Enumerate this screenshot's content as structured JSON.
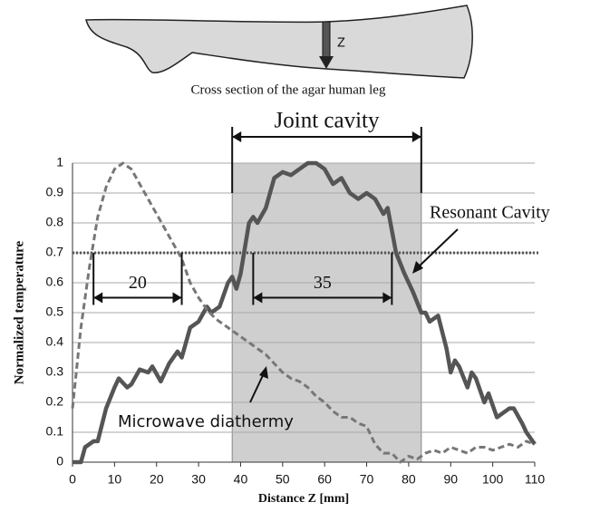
{
  "diagram": {
    "caption": "Cross section of the agar human leg",
    "arrow_label": "Z"
  },
  "chart_data": {
    "type": "line",
    "x_label": "Distance Z [mm]",
    "y_label": "Normalized temperature",
    "xlim": [
      0,
      110
    ],
    "xticks": [
      0,
      10,
      20,
      30,
      40,
      50,
      60,
      70,
      80,
      90,
      100,
      110
    ],
    "ylim": [
      0,
      1
    ],
    "yticks": [
      0,
      0.1,
      0.2,
      0.3,
      0.4,
      0.5,
      0.6,
      0.7,
      0.8,
      0.9,
      1
    ],
    "grid": true,
    "series": [
      {
        "name": "Resonant Cavity",
        "color": "#555555",
        "style": "solid",
        "x": [
          0,
          2,
          3,
          5,
          6,
          8,
          10,
          11,
          13,
          14,
          16,
          18,
          19,
          21,
          23,
          25,
          26,
          28,
          30,
          32,
          33,
          35,
          37,
          38,
          39,
          40,
          42,
          43,
          44,
          46,
          48,
          50,
          52,
          54,
          56,
          58,
          60,
          62,
          64,
          66,
          68,
          70,
          72,
          74,
          75,
          77,
          79,
          81,
          83,
          84,
          85,
          86,
          87,
          89,
          90,
          91,
          92,
          94,
          95,
          96,
          98,
          99,
          101,
          102,
          104,
          105,
          107,
          108,
          110
        ],
        "values": [
          0,
          0,
          0.05,
          0.07,
          0.07,
          0.18,
          0.25,
          0.28,
          0.25,
          0.26,
          0.31,
          0.3,
          0.32,
          0.27,
          0.33,
          0.37,
          0.35,
          0.45,
          0.47,
          0.52,
          0.5,
          0.52,
          0.6,
          0.62,
          0.58,
          0.63,
          0.8,
          0.82,
          0.8,
          0.85,
          0.95,
          0.97,
          0.96,
          0.98,
          1.0,
          1.0,
          0.98,
          0.93,
          0.95,
          0.9,
          0.88,
          0.9,
          0.88,
          0.83,
          0.85,
          0.7,
          0.63,
          0.57,
          0.5,
          0.5,
          0.47,
          0.48,
          0.49,
          0.38,
          0.3,
          0.34,
          0.32,
          0.25,
          0.3,
          0.28,
          0.2,
          0.23,
          0.15,
          0.16,
          0.18,
          0.18,
          0.13,
          0.1,
          0.06
        ]
      },
      {
        "name": "Microwave diathermy",
        "color": "#777777",
        "style": "dashed",
        "x": [
          0,
          2,
          4,
          6,
          8,
          10,
          12,
          14,
          16,
          18,
          20,
          22,
          24,
          26,
          28,
          30,
          32,
          34,
          36,
          38,
          40,
          42,
          44,
          46,
          48,
          50,
          52,
          54,
          56,
          58,
          60,
          62,
          64,
          66,
          68,
          70,
          72,
          74,
          76,
          78,
          80,
          82,
          84,
          86,
          88,
          90,
          92,
          94,
          96,
          98,
          100,
          102,
          104,
          106,
          108,
          110
        ],
        "values": [
          0.18,
          0.45,
          0.65,
          0.82,
          0.92,
          0.98,
          1.0,
          0.98,
          0.93,
          0.88,
          0.83,
          0.78,
          0.73,
          0.68,
          0.6,
          0.55,
          0.51,
          0.48,
          0.46,
          0.44,
          0.42,
          0.4,
          0.38,
          0.36,
          0.33,
          0.3,
          0.28,
          0.27,
          0.25,
          0.22,
          0.2,
          0.17,
          0.15,
          0.15,
          0.13,
          0.12,
          0.06,
          0.03,
          0.03,
          0.0,
          0.02,
          0.01,
          0.03,
          0.04,
          0.03,
          0.05,
          0.04,
          0.03,
          0.05,
          0.05,
          0.04,
          0.05,
          0.06,
          0.05,
          0.07,
          0.06
        ]
      }
    ],
    "threshold": 0.7,
    "region": {
      "label": "Joint cavity",
      "x": [
        38,
        83
      ]
    },
    "spans": [
      {
        "label": "20",
        "x": [
          5,
          26
        ],
        "y": 0.55
      },
      {
        "label": "35",
        "x": [
          43,
          76
        ],
        "y": 0.55
      }
    ]
  }
}
